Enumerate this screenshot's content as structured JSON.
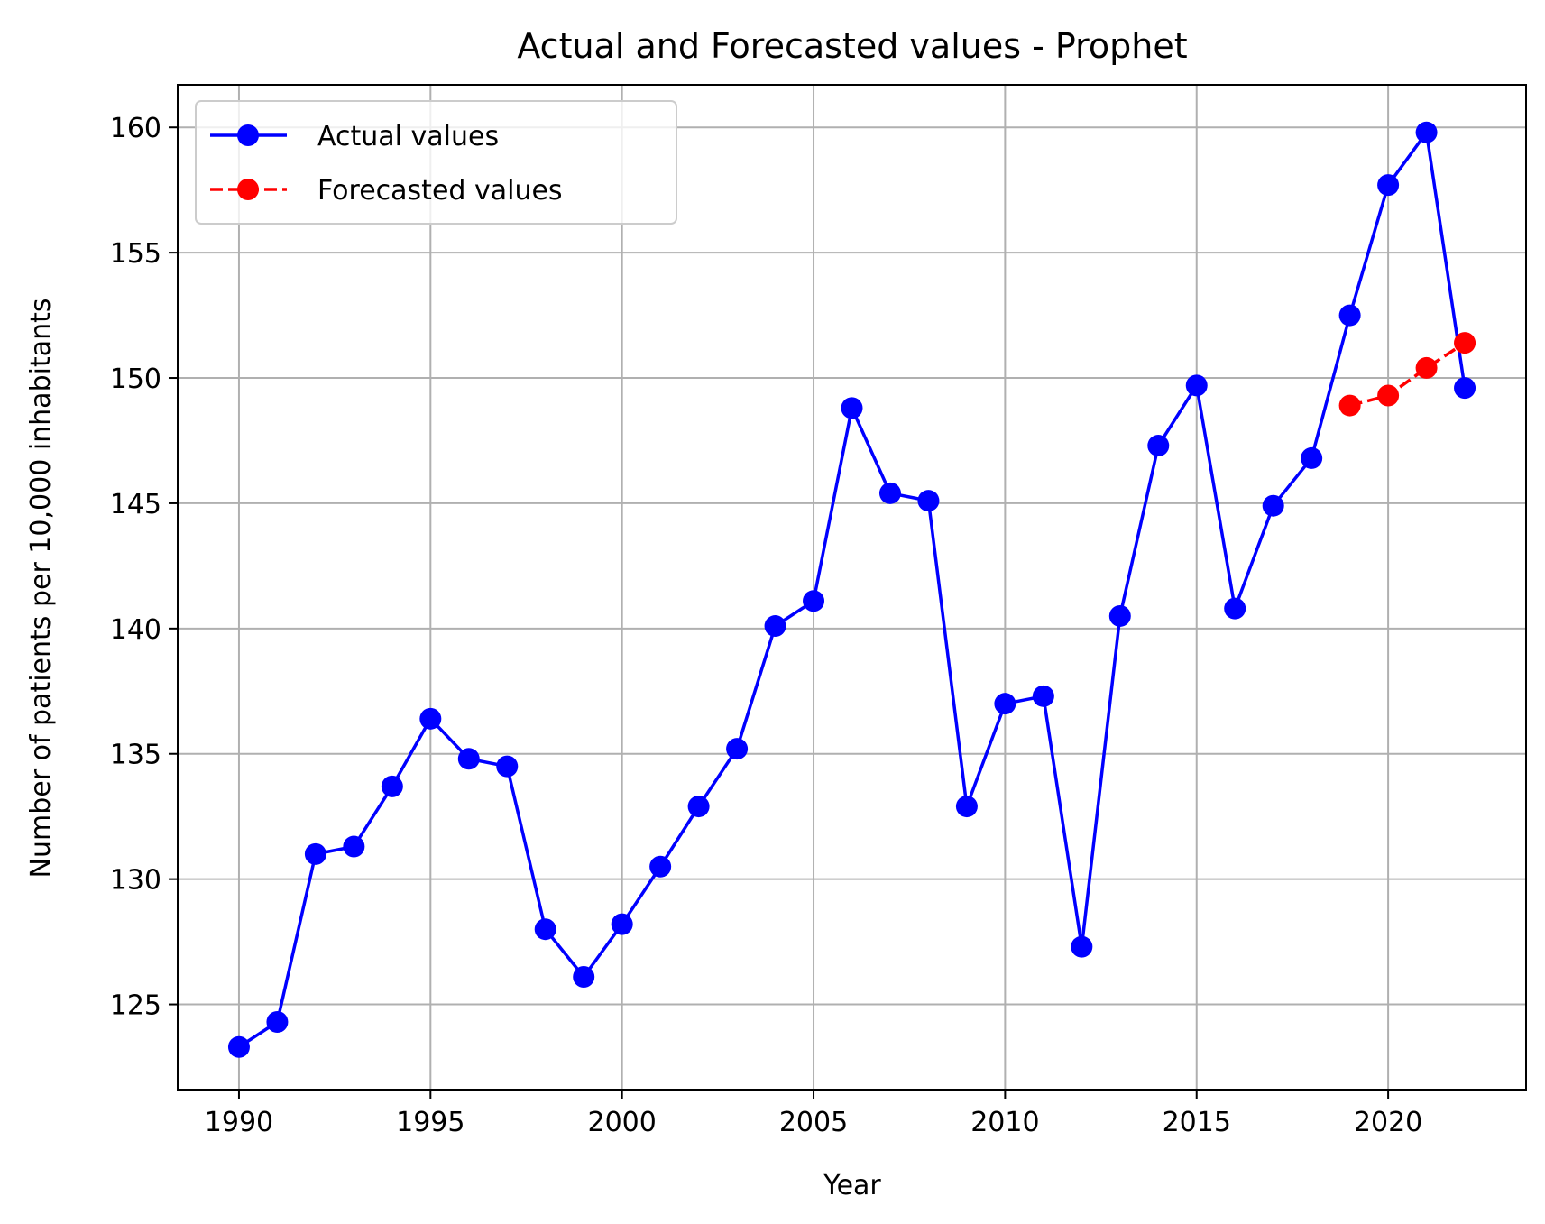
{
  "chart_data": {
    "type": "line",
    "title": "Actual and Forecasted values - Prophet",
    "xlabel": "Year",
    "ylabel": "Number of patients per 10,000 inhabitants",
    "xlim": [
      1988.4,
      2023.6
    ],
    "ylim": [
      121.6,
      161.7
    ],
    "xticks": [
      1990,
      1995,
      2000,
      2005,
      2010,
      2015,
      2020
    ],
    "yticks": [
      125,
      130,
      135,
      140,
      145,
      150,
      155,
      160
    ],
    "grid": true,
    "legend_position": "top-left",
    "series": [
      {
        "name": "Actual values",
        "color": "#0000ff",
        "linestyle": "solid",
        "marker": "circle",
        "x": [
          1990,
          1991,
          1992,
          1993,
          1994,
          1995,
          1996,
          1997,
          1998,
          1999,
          2000,
          2001,
          2002,
          2003,
          2004,
          2005,
          2006,
          2007,
          2008,
          2009,
          2010,
          2011,
          2012,
          2013,
          2014,
          2015,
          2016,
          2017,
          2018,
          2019,
          2020,
          2021,
          2022
        ],
        "y": [
          123.3,
          124.3,
          131.0,
          131.3,
          133.7,
          136.4,
          134.8,
          134.5,
          128.0,
          126.1,
          128.2,
          130.5,
          132.9,
          135.2,
          140.1,
          141.1,
          148.8,
          145.4,
          145.1,
          132.9,
          137.0,
          137.3,
          127.3,
          140.5,
          147.3,
          149.7,
          140.8,
          144.9,
          146.8,
          152.5,
          157.7,
          159.8,
          149.6
        ]
      },
      {
        "name": "Forecasted values",
        "color": "#ff0000",
        "linestyle": "dashed",
        "marker": "circle",
        "x": [
          2019,
          2020,
          2021,
          2022
        ],
        "y": [
          148.9,
          149.3,
          150.4,
          151.4
        ]
      }
    ]
  }
}
